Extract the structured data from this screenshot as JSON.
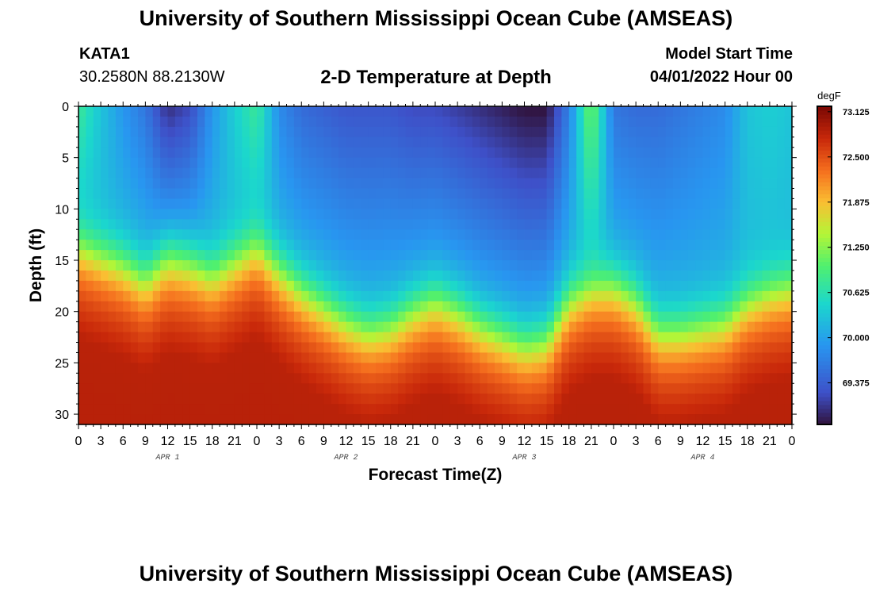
{
  "header": {
    "title": "University of Southern Mississippi Ocean Cube (AMSEAS)",
    "station": "KATA1",
    "coords": "30.2580N  88.2130W",
    "plot_title": "2-D Temperature at Depth",
    "model_label": "Model Start Time",
    "model_time": "04/01/2022 Hour 00"
  },
  "footer": {
    "title": "University of Southern Mississippi Ocean Cube (AMSEAS)"
  },
  "chart_data": {
    "type": "heatmap",
    "title": "2-D Temperature at Depth",
    "xlabel": "Forecast Time(Z)",
    "ylabel": "Depth (ft)",
    "x_hours_range": [
      0,
      96
    ],
    "x_tick_step_hours": 3,
    "x_tick_labels": [
      "0",
      "3",
      "6",
      "9",
      "12",
      "15",
      "18",
      "21",
      "0",
      "3",
      "6",
      "9",
      "12",
      "15",
      "18",
      "21",
      "0",
      "3",
      "6",
      "9",
      "12",
      "15",
      "18",
      "21",
      "0",
      "3",
      "6",
      "9",
      "12",
      "15",
      "18",
      "21",
      "0"
    ],
    "day_labels": [
      {
        "label": "APR 1",
        "hour": 12
      },
      {
        "label": "APR 2",
        "hour": 36
      },
      {
        "label": "APR 3",
        "hour": 60
      },
      {
        "label": "APR 4",
        "hour": 84
      }
    ],
    "ylim": [
      0,
      31
    ],
    "y_ticks": [
      0,
      5,
      10,
      15,
      20,
      25,
      30
    ],
    "y_tick_labels": [
      "0",
      "5",
      "10",
      "15",
      "20",
      "25",
      "30"
    ],
    "colorbar": {
      "unit": "degF",
      "range": [
        68.8,
        73.2
      ],
      "tick_values": [
        73.125,
        72.5,
        71.875,
        71.25,
        70.625,
        70.0,
        69.375
      ],
      "tick_labels": [
        "73.125",
        "72.500",
        "71.875",
        "71.250",
        "70.625",
        "70.000",
        "69.375"
      ]
    },
    "field": {
      "description_hours": [
        0,
        3,
        6,
        9,
        12,
        15,
        18,
        21,
        24,
        27,
        30,
        33,
        36,
        39,
        42,
        45,
        48,
        51,
        54,
        57,
        60,
        63,
        66,
        69,
        72,
        75,
        78,
        81,
        84,
        87,
        90,
        93,
        96
      ],
      "thermocline_depth_ft": [
        13.5,
        14.5,
        15.5,
        17.0,
        15.0,
        15.5,
        16.5,
        15.0,
        13.5,
        16.0,
        18.0,
        19.5,
        21.0,
        22.0,
        21.5,
        20.0,
        19.0,
        20.0,
        21.5,
        22.5,
        23.5,
        23.0,
        19.0,
        17.5,
        17.5,
        19.0,
        22.0,
        22.0,
        21.5,
        21.0,
        19.0,
        18.0,
        17.5
      ],
      "surface_temp_degF": [
        70.8,
        70.3,
        69.9,
        69.6,
        69.0,
        69.2,
        69.9,
        70.4,
        70.8,
        69.8,
        69.5,
        69.4,
        69.3,
        69.3,
        69.3,
        69.2,
        69.2,
        69.1,
        69.0,
        68.9,
        68.8,
        68.8,
        69.7,
        71.2,
        69.6,
        69.5,
        69.5,
        69.6,
        69.7,
        69.8,
        70.3,
        70.4,
        70.3
      ]
    }
  }
}
